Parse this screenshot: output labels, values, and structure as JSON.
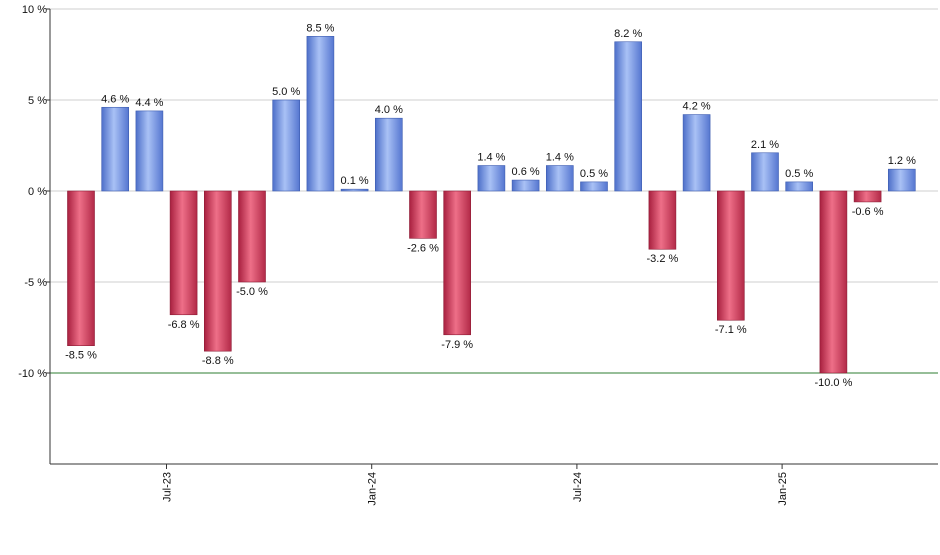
{
  "chart_data": {
    "type": "bar",
    "title": "",
    "xlabel": "",
    "ylabel": "",
    "ylim": [
      -15,
      10
    ],
    "yticks": [
      10,
      5,
      0,
      -5,
      -10
    ],
    "ytick_labels": [
      "10 %",
      "5 %",
      "0 %",
      "-5 %",
      "-10 %"
    ],
    "grid": true,
    "reference_line": {
      "value": -10,
      "color": "#2e7d32"
    },
    "values": [
      -8.5,
      4.6,
      4.4,
      -6.8,
      -8.8,
      -5.0,
      5.0,
      8.5,
      0.1,
      4.0,
      -2.6,
      -7.9,
      1.4,
      0.6,
      1.4,
      0.5,
      8.2,
      -3.2,
      4.2,
      -7.1,
      2.1,
      0.5,
      -10.0,
      -0.6,
      1.2
    ],
    "value_labels": [
      "-8.5 %",
      "4.6 %",
      "4.4 %",
      "-6.8 %",
      "-8.8 %",
      "-5.0 %",
      "5.0 %",
      "8.5 %",
      "0.1 %",
      "4.0 %",
      "-2.6 %",
      "-7.9 %",
      "1.4 %",
      "0.6 %",
      "1.4 %",
      "0.5 %",
      "8.2 %",
      "-3.2 %",
      "4.2 %",
      "-7.1 %",
      "2.1 %",
      "0.5 %",
      "-10.0 %",
      "-0.6 %",
      "1.2 %"
    ],
    "x_ticks": [
      {
        "label": "Jul-23",
        "index": 2.5
      },
      {
        "label": "Jan-24",
        "index": 8.5
      },
      {
        "label": "Jul-24",
        "index": 14.5
      },
      {
        "label": "Jan-25",
        "index": 20.5
      }
    ],
    "colors": {
      "positive": "#7f9fe6",
      "negative": "#d23a5a"
    }
  }
}
